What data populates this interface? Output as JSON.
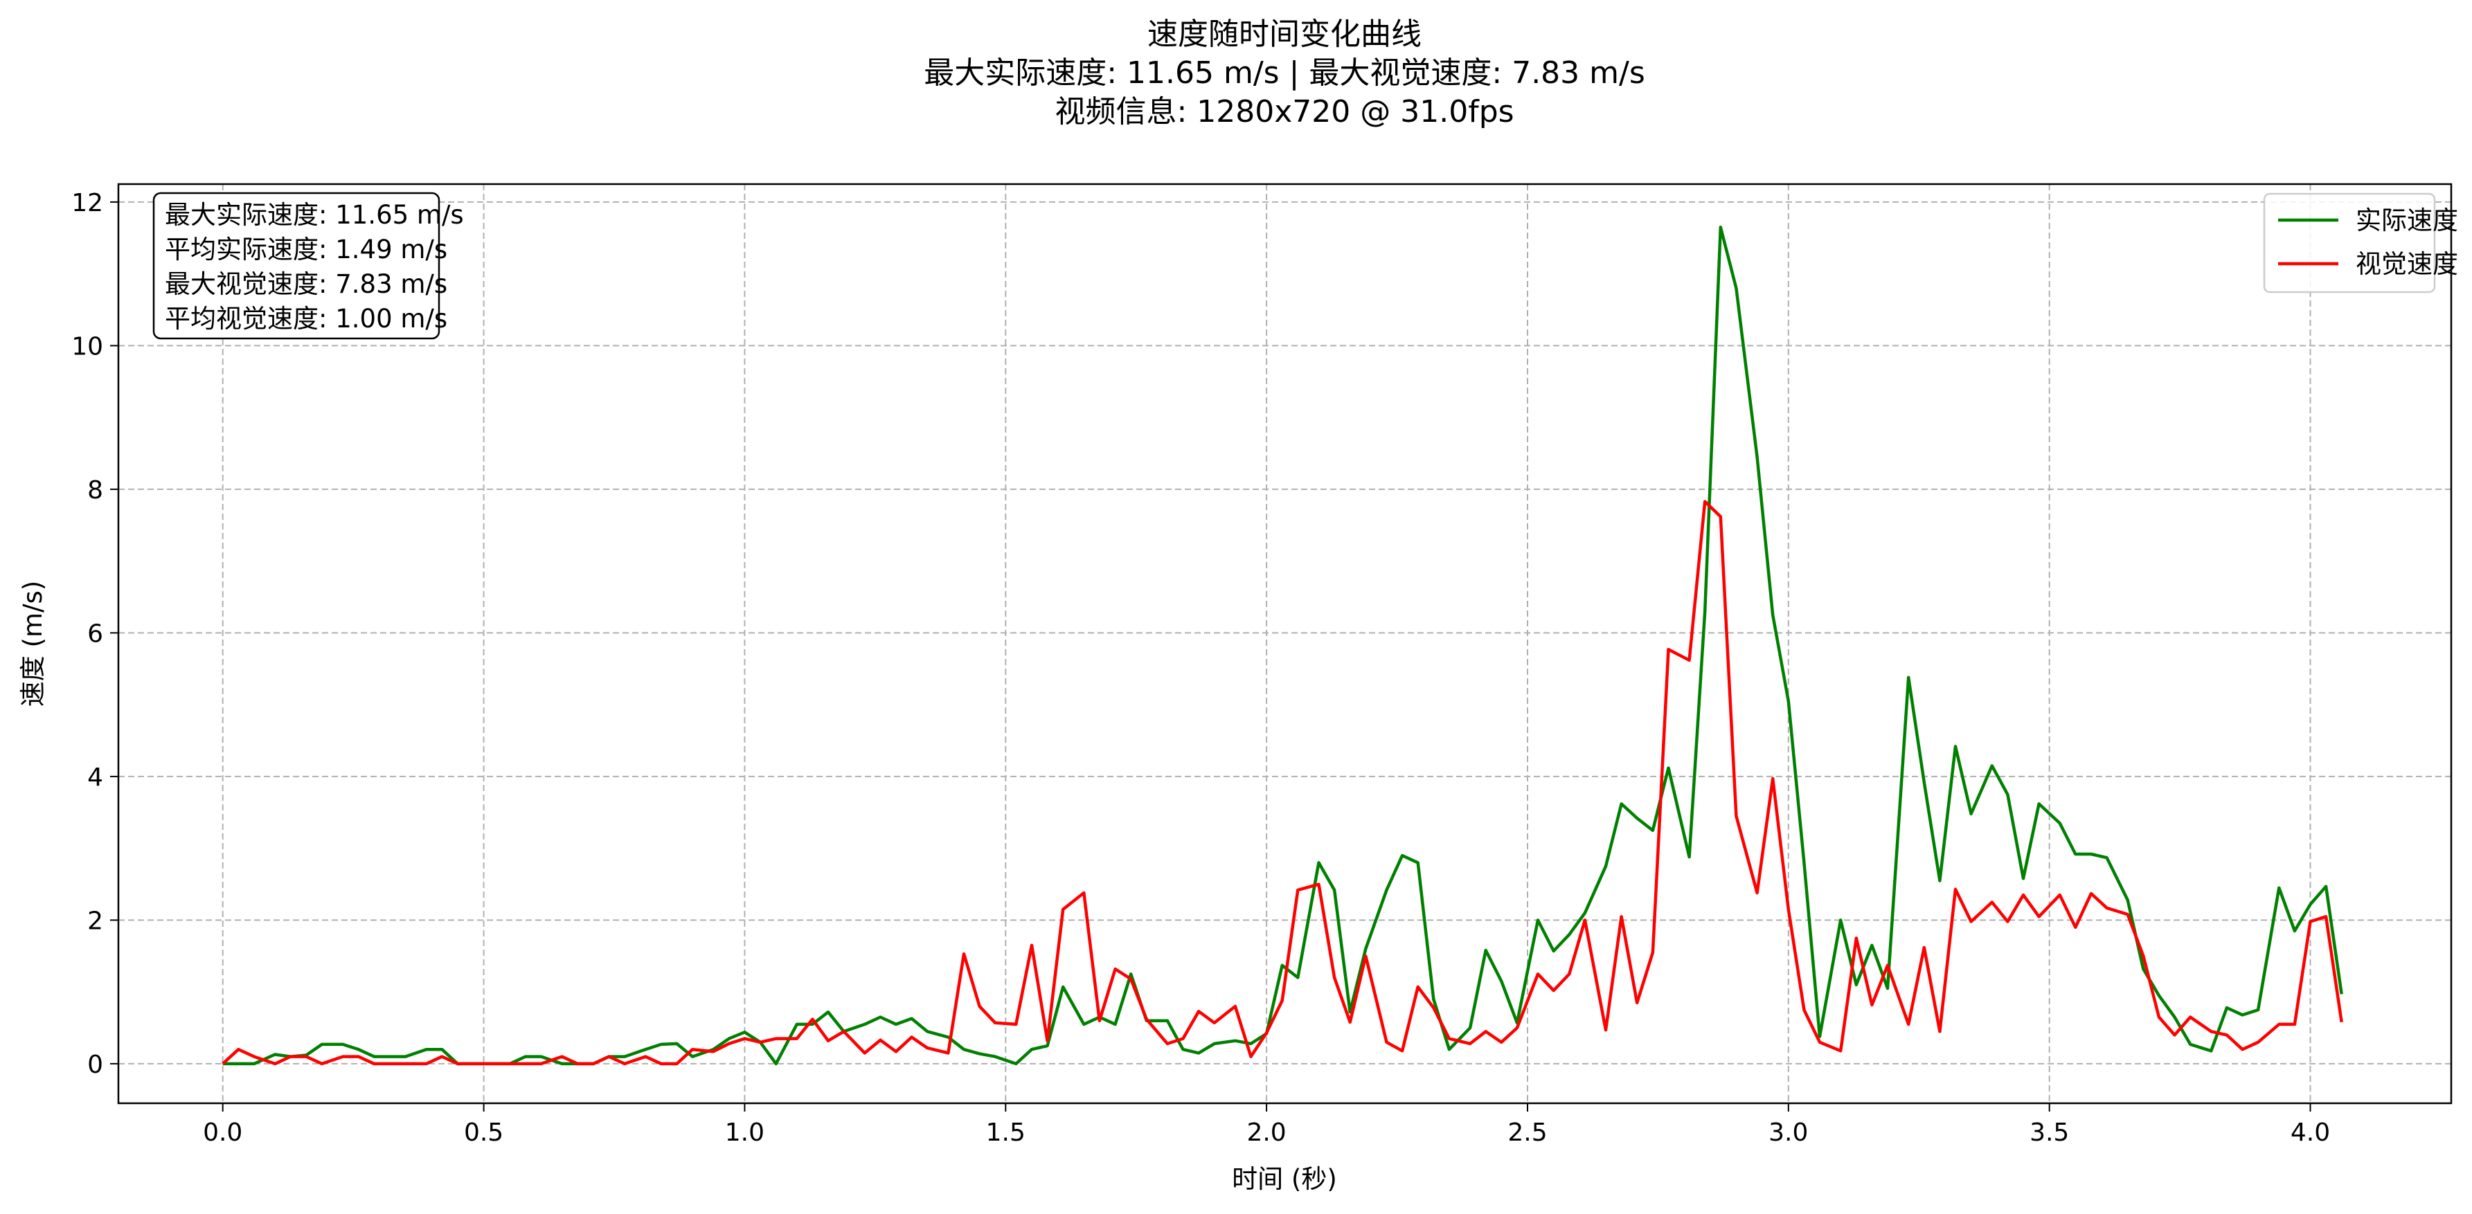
{
  "chart_data": {
    "type": "line",
    "title_lines": [
      "速度随时间变化曲线",
      "最大实际速度: 11.65 m/s | 最大视觉速度: 7.83 m/s",
      "视频信息: 1280x720 @ 31.0fps"
    ],
    "xlabel": "时间 (秒)",
    "ylabel": "速度 (m/s)",
    "xlim": [
      -0.2,
      4.27
    ],
    "ylim": [
      -0.55,
      12.25
    ],
    "xticks": [
      0.0,
      0.5,
      1.0,
      1.5,
      2.0,
      2.5,
      3.0,
      3.5,
      4.0
    ],
    "xtick_labels": [
      "0.0",
      "0.5",
      "1.0",
      "1.5",
      "2.0",
      "2.5",
      "3.0",
      "3.5",
      "4.0"
    ],
    "yticks": [
      0,
      2,
      4,
      6,
      8,
      10,
      12
    ],
    "ytick_labels": [
      "0",
      "2",
      "4",
      "6",
      "8",
      "10",
      "12"
    ],
    "grid": true,
    "legend_position": "top-right",
    "info_box": [
      "最大实际速度: 11.65 m/s",
      "平均实际速度: 1.49 m/s",
      "最大视觉速度: 7.83 m/s",
      "平均视觉速度: 1.00 m/s"
    ],
    "series": [
      {
        "name": "实际速度",
        "color": "#008000",
        "x": [
          0.0,
          0.03,
          0.06,
          0.1,
          0.13,
          0.16,
          0.19,
          0.23,
          0.26,
          0.29,
          0.32,
          0.35,
          0.39,
          0.42,
          0.45,
          0.48,
          0.52,
          0.55,
          0.58,
          0.61,
          0.65,
          0.68,
          0.71,
          0.74,
          0.77,
          0.81,
          0.84,
          0.87,
          0.9,
          0.94,
          0.97,
          1.0,
          1.03,
          1.06,
          1.1,
          1.13,
          1.16,
          1.19,
          1.23,
          1.26,
          1.29,
          1.32,
          1.35,
          1.39,
          1.42,
          1.45,
          1.48,
          1.52,
          1.55,
          1.58,
          1.61,
          1.65,
          1.68,
          1.71,
          1.74,
          1.77,
          1.81,
          1.84,
          1.87,
          1.9,
          1.94,
          1.97,
          2.0,
          2.03,
          2.06,
          2.1,
          2.13,
          2.16,
          2.19,
          2.23,
          2.26,
          2.29,
          2.32,
          2.35,
          2.39,
          2.42,
          2.45,
          2.48,
          2.52,
          2.55,
          2.58,
          2.61,
          2.65,
          2.68,
          2.71,
          2.74,
          2.77,
          2.81,
          2.84,
          2.87,
          2.9,
          2.94,
          2.97,
          3.0,
          3.03,
          3.06,
          3.1,
          3.13,
          3.16,
          3.19,
          3.23,
          3.26,
          3.29,
          3.32,
          3.35,
          3.39,
          3.42,
          3.45,
          3.48,
          3.52,
          3.55,
          3.58,
          3.61,
          3.65,
          3.68,
          3.71,
          3.74,
          3.77,
          3.81,
          3.84,
          3.87,
          3.9,
          3.94,
          3.97,
          4.0,
          4.03,
          4.06
        ],
        "y": [
          0.0,
          0.0,
          0.0,
          0.13,
          0.1,
          0.12,
          0.27,
          0.27,
          0.2,
          0.1,
          0.1,
          0.1,
          0.2,
          0.2,
          0.0,
          0.0,
          0.0,
          0.0,
          0.1,
          0.1,
          0.0,
          0.0,
          0.0,
          0.1,
          0.1,
          0.2,
          0.27,
          0.28,
          0.1,
          0.2,
          0.35,
          0.44,
          0.3,
          0.0,
          0.55,
          0.55,
          0.72,
          0.45,
          0.55,
          0.65,
          0.55,
          0.63,
          0.45,
          0.37,
          0.2,
          0.14,
          0.1,
          0.0,
          0.2,
          0.25,
          1.07,
          0.55,
          0.65,
          0.55,
          1.25,
          0.6,
          0.6,
          0.2,
          0.15,
          0.28,
          0.32,
          0.28,
          0.42,
          1.37,
          1.2,
          2.8,
          2.42,
          0.72,
          1.6,
          2.42,
          2.9,
          2.8,
          0.9,
          0.2,
          0.5,
          1.58,
          1.15,
          0.57,
          2.0,
          1.57,
          1.8,
          2.1,
          2.75,
          3.62,
          3.42,
          3.25,
          4.12,
          2.88,
          6.3,
          11.65,
          10.8,
          8.45,
          6.25,
          5.05,
          2.8,
          0.38,
          2.0,
          1.1,
          1.65,
          1.05,
          5.38,
          3.92,
          2.55,
          4.42,
          3.48,
          4.15,
          3.75,
          2.58,
          3.62,
          3.35,
          2.92,
          2.92,
          2.87,
          2.28,
          1.32,
          0.95,
          0.65,
          0.27,
          0.18,
          0.78,
          0.68,
          0.75,
          2.45,
          1.85,
          2.22,
          2.47,
          0.97
        ]
      },
      {
        "name": "视觉速度",
        "color": "#ff0000",
        "x": [
          0.0,
          0.03,
          0.06,
          0.1,
          0.13,
          0.16,
          0.19,
          0.23,
          0.26,
          0.29,
          0.32,
          0.35,
          0.39,
          0.42,
          0.45,
          0.48,
          0.52,
          0.55,
          0.58,
          0.61,
          0.65,
          0.68,
          0.71,
          0.74,
          0.77,
          0.81,
          0.84,
          0.87,
          0.9,
          0.94,
          0.97,
          1.0,
          1.03,
          1.06,
          1.1,
          1.13,
          1.16,
          1.19,
          1.23,
          1.26,
          1.29,
          1.32,
          1.35,
          1.39,
          1.42,
          1.45,
          1.48,
          1.52,
          1.55,
          1.58,
          1.61,
          1.65,
          1.68,
          1.71,
          1.74,
          1.77,
          1.81,
          1.84,
          1.87,
          1.9,
          1.94,
          1.97,
          2.0,
          2.03,
          2.06,
          2.1,
          2.13,
          2.16,
          2.19,
          2.23,
          2.26,
          2.29,
          2.32,
          2.35,
          2.39,
          2.42,
          2.45,
          2.48,
          2.52,
          2.55,
          2.58,
          2.61,
          2.65,
          2.68,
          2.71,
          2.74,
          2.77,
          2.81,
          2.84,
          2.87,
          2.9,
          2.94,
          2.97,
          3.0,
          3.03,
          3.06,
          3.1,
          3.13,
          3.16,
          3.19,
          3.23,
          3.26,
          3.29,
          3.32,
          3.35,
          3.39,
          3.42,
          3.45,
          3.48,
          3.52,
          3.55,
          3.58,
          3.61,
          3.65,
          3.68,
          3.71,
          3.74,
          3.77,
          3.81,
          3.84,
          3.87,
          3.9,
          3.94,
          3.97,
          4.0,
          4.03,
          4.06
        ],
        "y": [
          0.0,
          0.2,
          0.1,
          0.0,
          0.1,
          0.1,
          0.0,
          0.1,
          0.1,
          0.0,
          0.0,
          0.0,
          0.0,
          0.1,
          0.0,
          0.0,
          0.0,
          0.0,
          0.0,
          0.0,
          0.1,
          0.0,
          0.0,
          0.1,
          0.0,
          0.1,
          0.0,
          0.0,
          0.2,
          0.17,
          0.28,
          0.35,
          0.3,
          0.35,
          0.35,
          0.62,
          0.32,
          0.45,
          0.15,
          0.33,
          0.17,
          0.37,
          0.22,
          0.15,
          1.53,
          0.8,
          0.57,
          0.55,
          1.65,
          0.32,
          2.15,
          2.38,
          0.6,
          1.32,
          1.18,
          0.62,
          0.28,
          0.35,
          0.73,
          0.57,
          0.8,
          0.1,
          0.43,
          0.88,
          2.42,
          2.5,
          1.2,
          0.58,
          1.5,
          0.3,
          0.18,
          1.07,
          0.78,
          0.35,
          0.28,
          0.45,
          0.3,
          0.5,
          1.25,
          1.02,
          1.25,
          2.0,
          0.47,
          2.05,
          0.85,
          1.55,
          5.77,
          5.62,
          7.83,
          7.62,
          3.45,
          2.38,
          3.97,
          2.15,
          0.75,
          0.3,
          0.18,
          1.75,
          0.82,
          1.37,
          0.55,
          1.62,
          0.45,
          2.43,
          1.98,
          2.25,
          1.98,
          2.35,
          2.05,
          2.35,
          1.9,
          2.37,
          2.17,
          2.08,
          1.5,
          0.65,
          0.4,
          0.65,
          0.45,
          0.4,
          0.2,
          0.3,
          0.55,
          0.55,
          1.98,
          2.05,
          0.58
        ]
      }
    ]
  }
}
